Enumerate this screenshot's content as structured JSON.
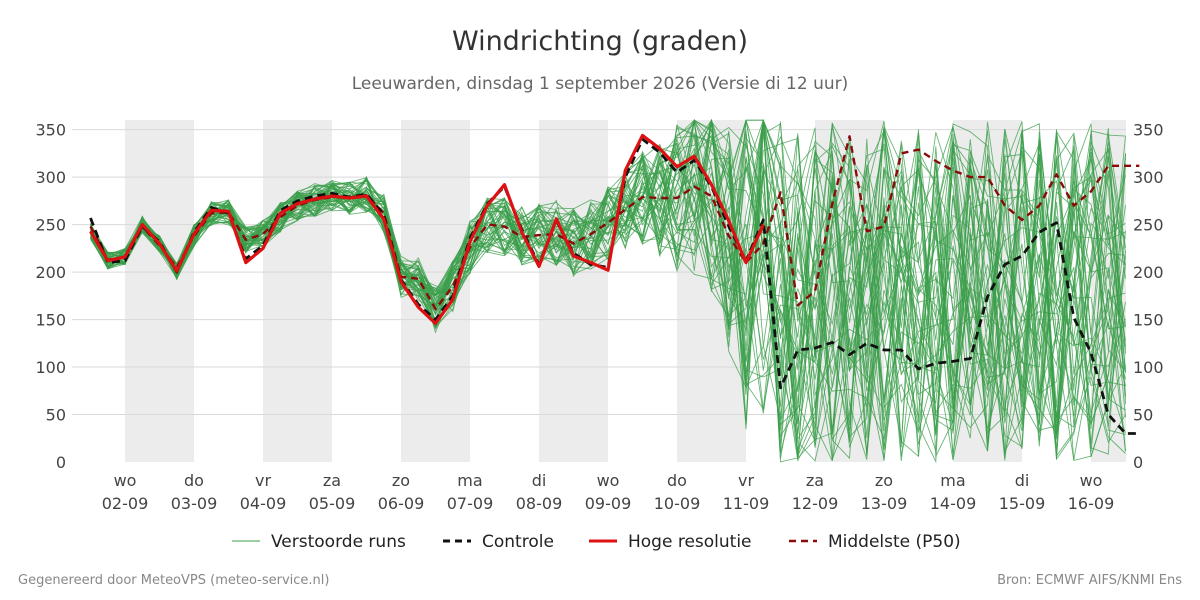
{
  "header": {
    "title": "Windrichting (graden)",
    "subtitle": "Leeuwarden, dinsdag  1 september 2026 (Versie di 12 uur)"
  },
  "footer": {
    "left": "Gegenereerd door MeteoVPS (meteo-service.nl)",
    "right": "Bron: ECMWF AIFS/KNMI Ens"
  },
  "colors": {
    "ensemble": "#3a9e4a",
    "control": "#111111",
    "hires": "#dd1111",
    "median": "#8b0a0a",
    "weekend_band": "#ececec",
    "grid": "#d9d9d9"
  },
  "chart_data": {
    "type": "line",
    "title": "Windrichting (graden)",
    "ylim": [
      0,
      360
    ],
    "yticks": [
      0,
      50,
      100,
      150,
      200,
      250,
      300,
      350
    ],
    "x_unit": "days since 1 september 2026 00 uur",
    "xlim": [
      0.55,
      15.7
    ],
    "xticks": [
      {
        "pos": 1,
        "day": "wo",
        "date": "02-09"
      },
      {
        "pos": 2,
        "day": "do",
        "date": "03-09"
      },
      {
        "pos": 3,
        "day": "vr",
        "date": "04-09"
      },
      {
        "pos": 4,
        "day": "za",
        "date": "05-09"
      },
      {
        "pos": 5,
        "day": "zo",
        "date": "06-09"
      },
      {
        "pos": 6,
        "day": "ma",
        "date": "07-09"
      },
      {
        "pos": 7,
        "day": "di",
        "date": "08-09"
      },
      {
        "pos": 8,
        "day": "wo",
        "date": "09-09"
      },
      {
        "pos": 9,
        "day": "do",
        "date": "10-09"
      },
      {
        "pos": 10,
        "day": "vr",
        "date": "11-09"
      },
      {
        "pos": 11,
        "day": "za",
        "date": "12-09"
      },
      {
        "pos": 12,
        "day": "zo",
        "date": "13-09"
      },
      {
        "pos": 13,
        "day": "ma",
        "date": "14-09"
      },
      {
        "pos": 14,
        "day": "di",
        "date": "15-09"
      },
      {
        "pos": 15,
        "day": "wo",
        "date": "16-09"
      }
    ],
    "shaded_bands": [
      [
        1,
        2
      ],
      [
        3,
        4
      ],
      [
        5,
        6
      ],
      [
        7,
        8
      ],
      [
        9,
        10
      ],
      [
        11,
        12
      ],
      [
        13,
        14
      ],
      [
        15,
        15.7
      ]
    ],
    "legend": {
      "position": "bottom",
      "entries": [
        {
          "label": "Verstoorde runs",
          "style": "thin-green"
        },
        {
          "label": "Controle",
          "style": "dashed-black"
        },
        {
          "label": "Hoge resolutie",
          "style": "solid-red"
        },
        {
          "label": "Middelste (P50)",
          "style": "dashed-darkred"
        }
      ]
    },
    "series": [
      {
        "name": "Hoge resolutie",
        "x": [
          0.5,
          0.75,
          1,
          1.25,
          1.5,
          1.75,
          2,
          2.25,
          2.5,
          2.75,
          3,
          3.25,
          3.5,
          3.75,
          4,
          4.25,
          4.5,
          4.75,
          5,
          5.25,
          5.5,
          5.75,
          6,
          6.25,
          6.5,
          6.75,
          7,
          7.25,
          7.5,
          7.75,
          8,
          8.25,
          8.5,
          8.75,
          9,
          9.25,
          9.5,
          9.75,
          10,
          10.25
        ],
        "values": [
          243,
          212,
          216,
          250,
          230,
          201,
          240,
          265,
          264,
          210,
          225,
          262,
          272,
          277,
          280,
          278,
          280,
          256,
          190,
          163,
          146,
          171,
          232,
          270,
          292,
          242,
          206,
          256,
          217,
          210,
          202,
          307,
          344,
          330,
          311,
          322,
          292,
          254,
          210,
          250
        ]
      },
      {
        "name": "Controle",
        "x": [
          0.5,
          0.75,
          1,
          1.25,
          1.5,
          1.75,
          2,
          2.25,
          2.5,
          2.75,
          3,
          3.25,
          3.5,
          3.75,
          4,
          4.25,
          4.5,
          4.75,
          5,
          5.25,
          5.5,
          5.75,
          6,
          6.25,
          6.5,
          6.75,
          7,
          7.25,
          7.5,
          7.75,
          8,
          8.25,
          8.5,
          8.75,
          9,
          9.25,
          9.5,
          9.75,
          10,
          10.25,
          10.5,
          10.75,
          11,
          11.25,
          11.5,
          11.75,
          12,
          12.25,
          12.5,
          12.75,
          13,
          13.25,
          13.5,
          13.75,
          14,
          14.25,
          14.5,
          14.75,
          15,
          15.25,
          15.5,
          15.7
        ],
        "values": [
          257,
          210,
          212,
          248,
          232,
          200,
          242,
          268,
          262,
          214,
          228,
          265,
          275,
          280,
          283,
          279,
          282,
          260,
          192,
          166,
          150,
          175,
          236,
          272,
          290,
          245,
          208,
          254,
          220,
          208,
          205,
          300,
          340,
          326,
          305,
          318,
          290,
          248,
          212,
          255,
          78,
          118,
          120,
          126,
          113,
          125,
          118,
          118,
          98,
          104,
          106,
          109,
          174,
          208,
          217,
          242,
          252,
          152,
          115,
          50,
          30,
          30
        ]
      },
      {
        "name": "Middelste (P50)",
        "x": [
          0.5,
          0.75,
          1,
          1.25,
          1.5,
          1.75,
          2,
          2.25,
          2.5,
          2.75,
          3,
          3.25,
          3.5,
          3.75,
          4,
          4.25,
          4.5,
          4.75,
          5,
          5.25,
          5.5,
          5.75,
          6,
          6.25,
          6.5,
          6.75,
          7,
          7.25,
          7.5,
          7.75,
          8,
          8.25,
          8.5,
          8.75,
          9,
          9.25,
          9.5,
          9.75,
          10,
          10.25,
          10.5,
          10.75,
          11,
          11.25,
          11.5,
          11.75,
          12,
          12.25,
          12.5,
          12.75,
          13,
          13.25,
          13.5,
          13.75,
          14,
          14.25,
          14.5,
          14.75,
          15,
          15.25,
          15.5,
          15.7
        ],
        "values": [
          248,
          213,
          216,
          248,
          228,
          205,
          238,
          262,
          263,
          234,
          240,
          258,
          270,
          276,
          279,
          279,
          281,
          262,
          195,
          193,
          161,
          185,
          226,
          250,
          248,
          237,
          239,
          240,
          230,
          240,
          252,
          266,
          279,
          278,
          278,
          290,
          280,
          238,
          210,
          230,
          284,
          165,
          180,
          272,
          343,
          243,
          248,
          325,
          329,
          317,
          307,
          300,
          300,
          270,
          255,
          270,
          303,
          270,
          285,
          312,
          312,
          312
        ]
      }
    ]
  }
}
